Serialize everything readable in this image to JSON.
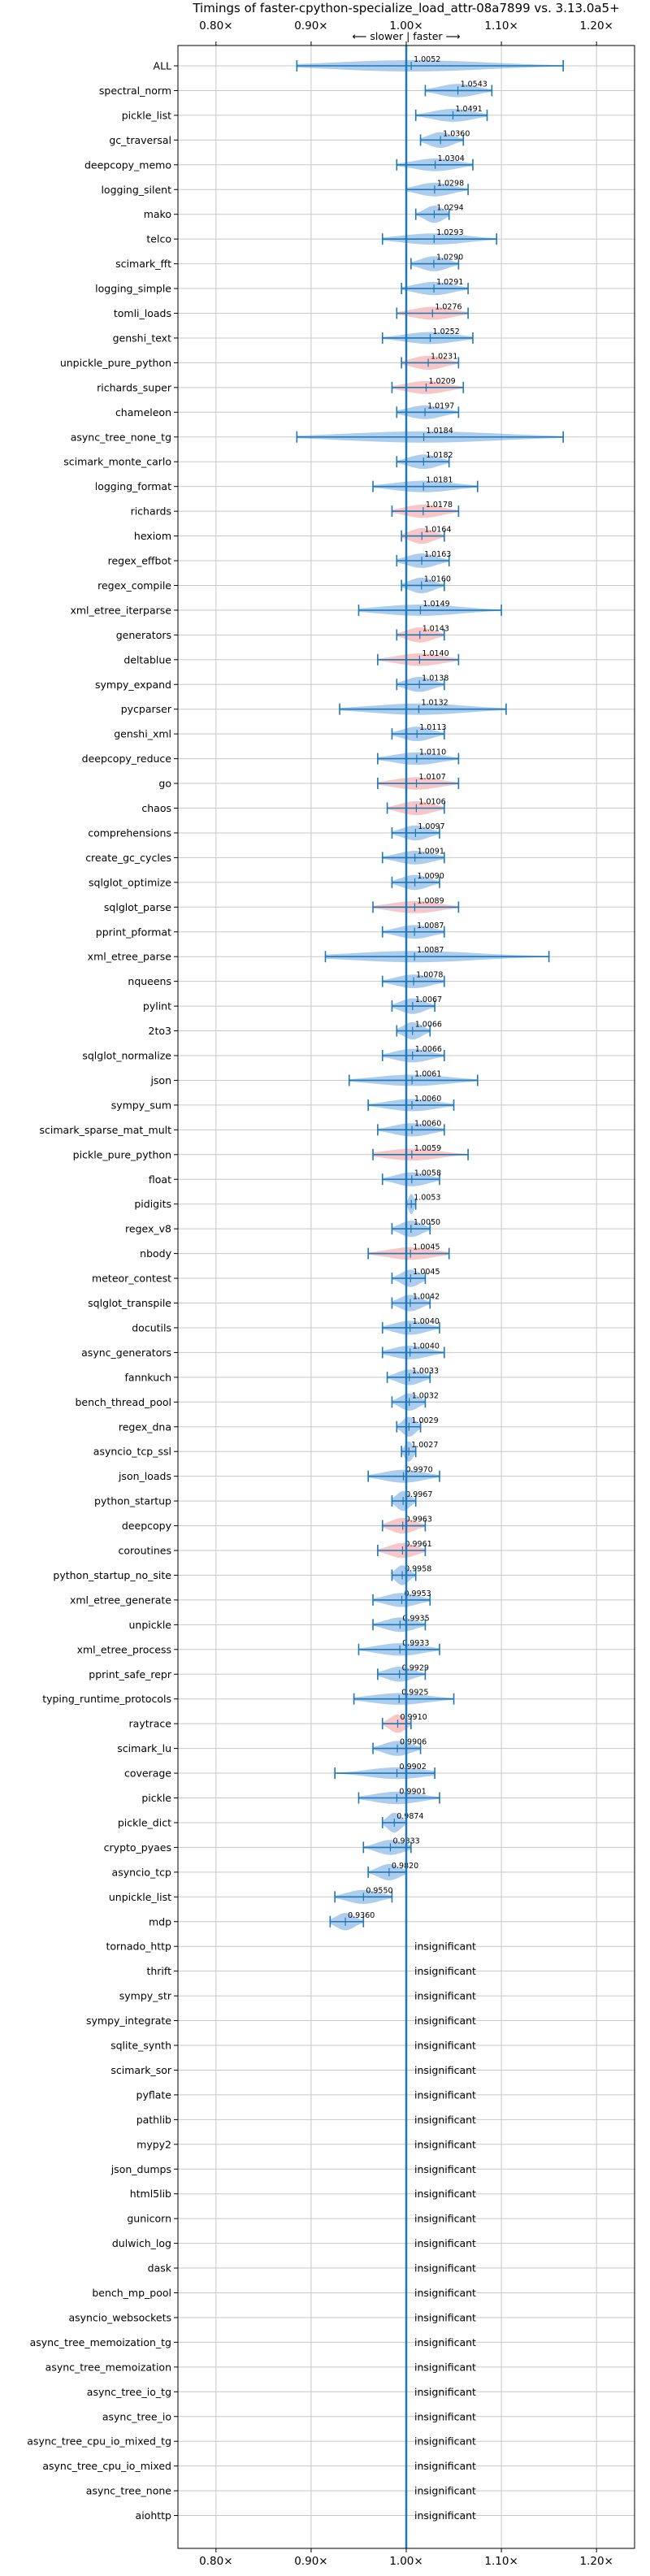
{
  "chart_data": {
    "type": "violin",
    "title": "Timings of faster-cpython-specialize_load_attr-08a7899 vs. 3.13.0a5+",
    "xlim": [
      0.76,
      1.24
    ],
    "x_ticks": [
      0.8,
      0.9,
      1.0,
      1.1,
      1.2
    ],
    "x_tick_labels": [
      "0.80×",
      "0.90×",
      "1.00×",
      "1.10×",
      "1.20×"
    ],
    "direction_label": "⟵ slower | faster ⟶",
    "insignificant_label": "insignificant",
    "grid": true,
    "reference_line": 1.0,
    "colors": {
      "faster": "#4a90d9",
      "slower": "#f08080",
      "errorbar": "#1f77b4",
      "reference": "#1f77b4"
    },
    "benchmarks": [
      {
        "name": "ALL",
        "value": 1.0052,
        "label": "1.0052",
        "low": 0.885,
        "high": 1.165,
        "color": "blue"
      },
      {
        "name": "spectral_norm",
        "value": 1.0543,
        "label": "1.0543",
        "low": 1.02,
        "high": 1.09,
        "color": "blue"
      },
      {
        "name": "pickle_list",
        "value": 1.0491,
        "label": "1.0491",
        "low": 1.01,
        "high": 1.085,
        "color": "blue"
      },
      {
        "name": "gc_traversal",
        "value": 1.036,
        "label": "1.0360",
        "low": 1.015,
        "high": 1.06,
        "color": "blue"
      },
      {
        "name": "deepcopy_memo",
        "value": 1.0304,
        "label": "1.0304",
        "low": 0.99,
        "high": 1.07,
        "color": "blue"
      },
      {
        "name": "logging_silent",
        "value": 1.0298,
        "label": "1.0298",
        "low": 1.0,
        "high": 1.065,
        "color": "blue"
      },
      {
        "name": "mako",
        "value": 1.0294,
        "label": "1.0294",
        "low": 1.01,
        "high": 1.045,
        "color": "blue"
      },
      {
        "name": "telco",
        "value": 1.0293,
        "label": "1.0293",
        "low": 0.975,
        "high": 1.095,
        "color": "blue"
      },
      {
        "name": "scimark_fft",
        "value": 1.029,
        "label": "1.0290",
        "low": 1.005,
        "high": 1.055,
        "color": "blue"
      },
      {
        "name": "logging_simple",
        "value": 1.0291,
        "label": "1.0291",
        "low": 0.995,
        "high": 1.065,
        "color": "blue"
      },
      {
        "name": "tomli_loads",
        "value": 1.0276,
        "label": "1.0276",
        "low": 0.99,
        "high": 1.065,
        "color": "red"
      },
      {
        "name": "genshi_text",
        "value": 1.0252,
        "label": "1.0252",
        "low": 0.975,
        "high": 1.07,
        "color": "blue"
      },
      {
        "name": "unpickle_pure_python",
        "value": 1.0231,
        "label": "1.0231",
        "low": 0.995,
        "high": 1.055,
        "color": "red"
      },
      {
        "name": "richards_super",
        "value": 1.0209,
        "label": "1.0209",
        "low": 0.985,
        "high": 1.06,
        "color": "red"
      },
      {
        "name": "chameleon",
        "value": 1.0197,
        "label": "1.0197",
        "low": 0.99,
        "high": 1.055,
        "color": "blue"
      },
      {
        "name": "async_tree_none_tg",
        "value": 1.0184,
        "label": "1.0184",
        "low": 0.885,
        "high": 1.165,
        "color": "blue"
      },
      {
        "name": "scimark_monte_carlo",
        "value": 1.0182,
        "label": "1.0182",
        "low": 0.99,
        "high": 1.045,
        "color": "blue"
      },
      {
        "name": "logging_format",
        "value": 1.0181,
        "label": "1.0181",
        "low": 0.965,
        "high": 1.075,
        "color": "blue"
      },
      {
        "name": "richards",
        "value": 1.0178,
        "label": "1.0178",
        "low": 0.985,
        "high": 1.055,
        "color": "red"
      },
      {
        "name": "hexiom",
        "value": 1.0164,
        "label": "1.0164",
        "low": 0.995,
        "high": 1.04,
        "color": "red"
      },
      {
        "name": "regex_effbot",
        "value": 1.0163,
        "label": "1.0163",
        "low": 0.99,
        "high": 1.045,
        "color": "blue"
      },
      {
        "name": "regex_compile",
        "value": 1.016,
        "label": "1.0160",
        "low": 0.995,
        "high": 1.04,
        "color": "blue"
      },
      {
        "name": "xml_etree_iterparse",
        "value": 1.0149,
        "label": "1.0149",
        "low": 0.95,
        "high": 1.1,
        "color": "blue"
      },
      {
        "name": "generators",
        "value": 1.0143,
        "label": "1.0143",
        "low": 0.99,
        "high": 1.04,
        "color": "red"
      },
      {
        "name": "deltablue",
        "value": 1.014,
        "label": "1.0140",
        "low": 0.97,
        "high": 1.055,
        "color": "red"
      },
      {
        "name": "sympy_expand",
        "value": 1.0138,
        "label": "1.0138",
        "low": 0.99,
        "high": 1.04,
        "color": "blue"
      },
      {
        "name": "pycparser",
        "value": 1.0132,
        "label": "1.0132",
        "low": 0.93,
        "high": 1.105,
        "color": "blue"
      },
      {
        "name": "genshi_xml",
        "value": 1.0113,
        "label": "1.0113",
        "low": 0.985,
        "high": 1.04,
        "color": "blue"
      },
      {
        "name": "deepcopy_reduce",
        "value": 1.011,
        "label": "1.0110",
        "low": 0.97,
        "high": 1.055,
        "color": "blue"
      },
      {
        "name": "go",
        "value": 1.0107,
        "label": "1.0107",
        "low": 0.97,
        "high": 1.055,
        "color": "red"
      },
      {
        "name": "chaos",
        "value": 1.0106,
        "label": "1.0106",
        "low": 0.98,
        "high": 1.04,
        "color": "red"
      },
      {
        "name": "comprehensions",
        "value": 1.0097,
        "label": "1.0097",
        "low": 0.985,
        "high": 1.035,
        "color": "blue"
      },
      {
        "name": "create_gc_cycles",
        "value": 1.0091,
        "label": "1.0091",
        "low": 0.975,
        "high": 1.04,
        "color": "blue"
      },
      {
        "name": "sqlglot_optimize",
        "value": 1.009,
        "label": "1.0090",
        "low": 0.985,
        "high": 1.035,
        "color": "blue"
      },
      {
        "name": "sqlglot_parse",
        "value": 1.0089,
        "label": "1.0089",
        "low": 0.965,
        "high": 1.055,
        "color": "red"
      },
      {
        "name": "pprint_pformat",
        "value": 1.0087,
        "label": "1.0087",
        "low": 0.975,
        "high": 1.04,
        "color": "blue"
      },
      {
        "name": "xml_etree_parse",
        "value": 1.0087,
        "label": "1.0087",
        "low": 0.915,
        "high": 1.15,
        "color": "blue"
      },
      {
        "name": "nqueens",
        "value": 1.0078,
        "label": "1.0078",
        "low": 0.975,
        "high": 1.04,
        "color": "blue"
      },
      {
        "name": "pylint",
        "value": 1.0067,
        "label": "1.0067",
        "low": 0.985,
        "high": 1.03,
        "color": "blue"
      },
      {
        "name": "2to3",
        "value": 1.0066,
        "label": "1.0066",
        "low": 0.99,
        "high": 1.025,
        "color": "blue"
      },
      {
        "name": "sqlglot_normalize",
        "value": 1.0066,
        "label": "1.0066",
        "low": 0.975,
        "high": 1.04,
        "color": "blue"
      },
      {
        "name": "json",
        "value": 1.0061,
        "label": "1.0061",
        "low": 0.94,
        "high": 1.075,
        "color": "blue"
      },
      {
        "name": "sympy_sum",
        "value": 1.006,
        "label": "1.0060",
        "low": 0.96,
        "high": 1.05,
        "color": "blue"
      },
      {
        "name": "scimark_sparse_mat_mult",
        "value": 1.006,
        "label": "1.0060",
        "low": 0.97,
        "high": 1.04,
        "color": "blue"
      },
      {
        "name": "pickle_pure_python",
        "value": 1.0059,
        "label": "1.0059",
        "low": 0.965,
        "high": 1.065,
        "color": "red"
      },
      {
        "name": "float",
        "value": 1.0058,
        "label": "1.0058",
        "low": 0.975,
        "high": 1.035,
        "color": "blue"
      },
      {
        "name": "pidigits",
        "value": 1.0053,
        "label": "1.0053",
        "low": 1.0,
        "high": 1.01,
        "color": "blue"
      },
      {
        "name": "regex_v8",
        "value": 1.005,
        "label": "1.0050",
        "low": 0.985,
        "high": 1.025,
        "color": "blue"
      },
      {
        "name": "nbody",
        "value": 1.0045,
        "label": "1.0045",
        "low": 0.96,
        "high": 1.045,
        "color": "red"
      },
      {
        "name": "meteor_contest",
        "value": 1.0045,
        "label": "1.0045",
        "low": 0.985,
        "high": 1.02,
        "color": "blue"
      },
      {
        "name": "sqlglot_transpile",
        "value": 1.0042,
        "label": "1.0042",
        "low": 0.985,
        "high": 1.025,
        "color": "blue"
      },
      {
        "name": "docutils",
        "value": 1.004,
        "label": "1.0040",
        "low": 0.975,
        "high": 1.035,
        "color": "blue"
      },
      {
        "name": "async_generators",
        "value": 1.004,
        "label": "1.0040",
        "low": 0.975,
        "high": 1.04,
        "color": "blue"
      },
      {
        "name": "fannkuch",
        "value": 1.0033,
        "label": "1.0033",
        "low": 0.98,
        "high": 1.025,
        "color": "blue"
      },
      {
        "name": "bench_thread_pool",
        "value": 1.0032,
        "label": "1.0032",
        "low": 0.985,
        "high": 1.02,
        "color": "blue"
      },
      {
        "name": "regex_dna",
        "value": 1.0029,
        "label": "1.0029",
        "low": 0.99,
        "high": 1.015,
        "color": "blue"
      },
      {
        "name": "asyncio_tcp_ssl",
        "value": 1.0027,
        "label": "1.0027",
        "low": 0.995,
        "high": 1.01,
        "color": "blue"
      },
      {
        "name": "json_loads",
        "value": 0.997,
        "label": "0.9970",
        "low": 0.96,
        "high": 1.035,
        "color": "blue"
      },
      {
        "name": "python_startup",
        "value": 0.9967,
        "label": "0.9967",
        "low": 0.985,
        "high": 1.01,
        "color": "blue"
      },
      {
        "name": "deepcopy",
        "value": 0.9963,
        "label": "0.9963",
        "low": 0.975,
        "high": 1.02,
        "color": "red"
      },
      {
        "name": "coroutines",
        "value": 0.9961,
        "label": "0.9961",
        "low": 0.97,
        "high": 1.02,
        "color": "red"
      },
      {
        "name": "python_startup_no_site",
        "value": 0.9958,
        "label": "0.9958",
        "low": 0.985,
        "high": 1.01,
        "color": "blue"
      },
      {
        "name": "xml_etree_generate",
        "value": 0.9953,
        "label": "0.9953",
        "low": 0.965,
        "high": 1.025,
        "color": "blue"
      },
      {
        "name": "unpickle",
        "value": 0.9935,
        "label": "0.9935",
        "low": 0.965,
        "high": 1.02,
        "color": "blue"
      },
      {
        "name": "xml_etree_process",
        "value": 0.9933,
        "label": "0.9933",
        "low": 0.95,
        "high": 1.035,
        "color": "blue"
      },
      {
        "name": "pprint_safe_repr",
        "value": 0.9929,
        "label": "0.9929",
        "low": 0.97,
        "high": 1.02,
        "color": "blue"
      },
      {
        "name": "typing_runtime_protocols",
        "value": 0.9925,
        "label": "0.9925",
        "low": 0.945,
        "high": 1.05,
        "color": "blue"
      },
      {
        "name": "raytrace",
        "value": 0.991,
        "label": "0.9910",
        "low": 0.975,
        "high": 1.005,
        "color": "red"
      },
      {
        "name": "scimark_lu",
        "value": 0.9906,
        "label": "0.9906",
        "low": 0.965,
        "high": 1.015,
        "color": "blue"
      },
      {
        "name": "coverage",
        "value": 0.9902,
        "label": "0.9902",
        "low": 0.925,
        "high": 1.03,
        "color": "blue"
      },
      {
        "name": "pickle",
        "value": 0.9901,
        "label": "0.9901",
        "low": 0.95,
        "high": 1.035,
        "color": "blue"
      },
      {
        "name": "pickle_dict",
        "value": 0.9874,
        "label": "0.9874",
        "low": 0.975,
        "high": 1.0,
        "color": "blue"
      },
      {
        "name": "crypto_pyaes",
        "value": 0.9833,
        "label": "0.9833",
        "low": 0.955,
        "high": 1.005,
        "color": "blue"
      },
      {
        "name": "asyncio_tcp",
        "value": 0.982,
        "label": "0.9820",
        "low": 0.96,
        "high": 1.0,
        "color": "blue"
      },
      {
        "name": "unpickle_list",
        "value": 0.955,
        "label": "0.9550",
        "low": 0.925,
        "high": 0.985,
        "color": "blue"
      },
      {
        "name": "mdp",
        "value": 0.936,
        "label": "0.9360",
        "low": 0.92,
        "high": 0.955,
        "color": "blue"
      },
      {
        "name": "tornado_http",
        "value": null,
        "label": "",
        "insignificant": true
      },
      {
        "name": "thrift",
        "value": null,
        "label": "",
        "insignificant": true
      },
      {
        "name": "sympy_str",
        "value": null,
        "label": "",
        "insignificant": true
      },
      {
        "name": "sympy_integrate",
        "value": null,
        "label": "",
        "insignificant": true
      },
      {
        "name": "sqlite_synth",
        "value": null,
        "label": "",
        "insignificant": true
      },
      {
        "name": "scimark_sor",
        "value": null,
        "label": "",
        "insignificant": true
      },
      {
        "name": "pyflate",
        "value": null,
        "label": "",
        "insignificant": true
      },
      {
        "name": "pathlib",
        "value": null,
        "label": "",
        "insignificant": true
      },
      {
        "name": "mypy2",
        "value": null,
        "label": "",
        "insignificant": true
      },
      {
        "name": "json_dumps",
        "value": null,
        "label": "",
        "insignificant": true
      },
      {
        "name": "html5lib",
        "value": null,
        "label": "",
        "insignificant": true
      },
      {
        "name": "gunicorn",
        "value": null,
        "label": "",
        "insignificant": true
      },
      {
        "name": "dulwich_log",
        "value": null,
        "label": "",
        "insignificant": true
      },
      {
        "name": "dask",
        "value": null,
        "label": "",
        "insignificant": true
      },
      {
        "name": "bench_mp_pool",
        "value": null,
        "label": "",
        "insignificant": true
      },
      {
        "name": "asyncio_websockets",
        "value": null,
        "label": "",
        "insignificant": true
      },
      {
        "name": "async_tree_memoization_tg",
        "value": null,
        "label": "",
        "insignificant": true
      },
      {
        "name": "async_tree_memoization",
        "value": null,
        "label": "",
        "insignificant": true
      },
      {
        "name": "async_tree_io_tg",
        "value": null,
        "label": "",
        "insignificant": true
      },
      {
        "name": "async_tree_io",
        "value": null,
        "label": "",
        "insignificant": true
      },
      {
        "name": "async_tree_cpu_io_mixed_tg",
        "value": null,
        "label": "",
        "insignificant": true
      },
      {
        "name": "async_tree_cpu_io_mixed",
        "value": null,
        "label": "",
        "insignificant": true
      },
      {
        "name": "async_tree_none",
        "value": null,
        "label": "",
        "insignificant": true
      },
      {
        "name": "aiohttp",
        "value": null,
        "label": "",
        "insignificant": true
      }
    ]
  }
}
